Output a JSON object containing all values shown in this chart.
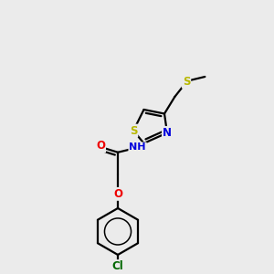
{
  "background_color": "#ebebeb",
  "bond_color": "#000000",
  "atom_colors": {
    "S": "#b8b800",
    "N": "#0000dd",
    "O": "#ee0000",
    "Cl": "#006600",
    "C": "#000000",
    "H": "#000000"
  },
  "bond_width": 1.6,
  "figsize": [
    3.0,
    3.0
  ],
  "dpi": 100,
  "xlim": [
    0,
    10
  ],
  "ylim": [
    0,
    10
  ]
}
